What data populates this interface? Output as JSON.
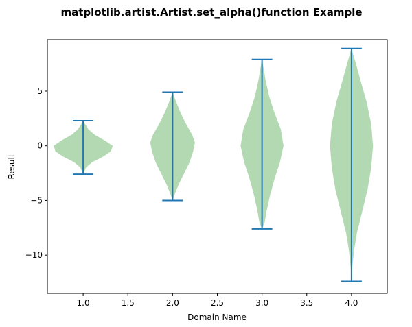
{
  "chart_data": {
    "type": "violin",
    "title": "matplotlib.artist.Artist.set_alpha()function Example",
    "xlabel": "Domain Name",
    "ylabel": "Result",
    "xlim": [
      0.6,
      4.4
    ],
    "ylim": [
      -13.5,
      9.7
    ],
    "xticks": [
      1.0,
      1.5,
      2.0,
      2.5,
      3.0,
      3.5,
      4.0
    ],
    "xtick_labels": [
      "1.0",
      "1.5",
      "2.0",
      "2.5",
      "3.0",
      "3.5",
      "4.0"
    ],
    "yticks": [
      -10,
      -5,
      0,
      5
    ],
    "ytick_labels": [
      "−10",
      "−5",
      "0",
      "5"
    ],
    "grid": false,
    "body_color": "#66b366",
    "body_alpha": 0.5,
    "line_color": "#1f77b4",
    "violins": [
      {
        "position": 1.0,
        "min": -2.6,
        "max": 2.3,
        "profile": [
          {
            "y": -2.6,
            "w": 0.0
          },
          {
            "y": -2.0,
            "w": 0.03
          },
          {
            "y": -1.5,
            "w": 0.1
          },
          {
            "y": -1.0,
            "w": 0.22
          },
          {
            "y": -0.5,
            "w": 0.31
          },
          {
            "y": 0.0,
            "w": 0.33
          },
          {
            "y": 0.5,
            "w": 0.24
          },
          {
            "y": 1.0,
            "w": 0.13
          },
          {
            "y": 1.5,
            "w": 0.06
          },
          {
            "y": 2.0,
            "w": 0.02
          },
          {
            "y": 2.3,
            "w": 0.0
          }
        ]
      },
      {
        "position": 2.0,
        "min": -5.0,
        "max": 4.9,
        "profile": [
          {
            "y": -5.0,
            "w": 0.0
          },
          {
            "y": -4.3,
            "w": 0.03
          },
          {
            "y": -3.5,
            "w": 0.07
          },
          {
            "y": -2.5,
            "w": 0.13
          },
          {
            "y": -1.5,
            "w": 0.19
          },
          {
            "y": -0.5,
            "w": 0.23
          },
          {
            "y": 0.3,
            "w": 0.25
          },
          {
            "y": 1.0,
            "w": 0.22
          },
          {
            "y": 2.0,
            "w": 0.15
          },
          {
            "y": 3.0,
            "w": 0.09
          },
          {
            "y": 4.0,
            "w": 0.04
          },
          {
            "y": 4.9,
            "w": 0.0
          }
        ]
      },
      {
        "position": 3.0,
        "min": -7.6,
        "max": 7.9,
        "profile": [
          {
            "y": -7.6,
            "w": 0.0
          },
          {
            "y": -7.0,
            "w": 0.03
          },
          {
            "y": -6.0,
            "w": 0.05
          },
          {
            "y": -4.5,
            "w": 0.09
          },
          {
            "y": -3.0,
            "w": 0.14
          },
          {
            "y": -1.5,
            "w": 0.2
          },
          {
            "y": 0.0,
            "w": 0.24
          },
          {
            "y": 1.5,
            "w": 0.21
          },
          {
            "y": 3.0,
            "w": 0.14
          },
          {
            "y": 4.5,
            "w": 0.08
          },
          {
            "y": 6.0,
            "w": 0.04
          },
          {
            "y": 7.0,
            "w": 0.02
          },
          {
            "y": 7.9,
            "w": 0.0
          }
        ]
      },
      {
        "position": 4.0,
        "min": -12.4,
        "max": 8.9,
        "profile": [
          {
            "y": -12.4,
            "w": 0.0
          },
          {
            "y": -11.0,
            "w": 0.01
          },
          {
            "y": -9.5,
            "w": 0.03
          },
          {
            "y": -8.0,
            "w": 0.06
          },
          {
            "y": -6.0,
            "w": 0.12
          },
          {
            "y": -4.0,
            "w": 0.18
          },
          {
            "y": -2.0,
            "w": 0.22
          },
          {
            "y": 0.0,
            "w": 0.24
          },
          {
            "y": 2.0,
            "w": 0.22
          },
          {
            "y": 4.0,
            "w": 0.17
          },
          {
            "y": 6.0,
            "w": 0.1
          },
          {
            "y": 7.5,
            "w": 0.05
          },
          {
            "y": 8.9,
            "w": 0.0
          }
        ]
      }
    ]
  }
}
